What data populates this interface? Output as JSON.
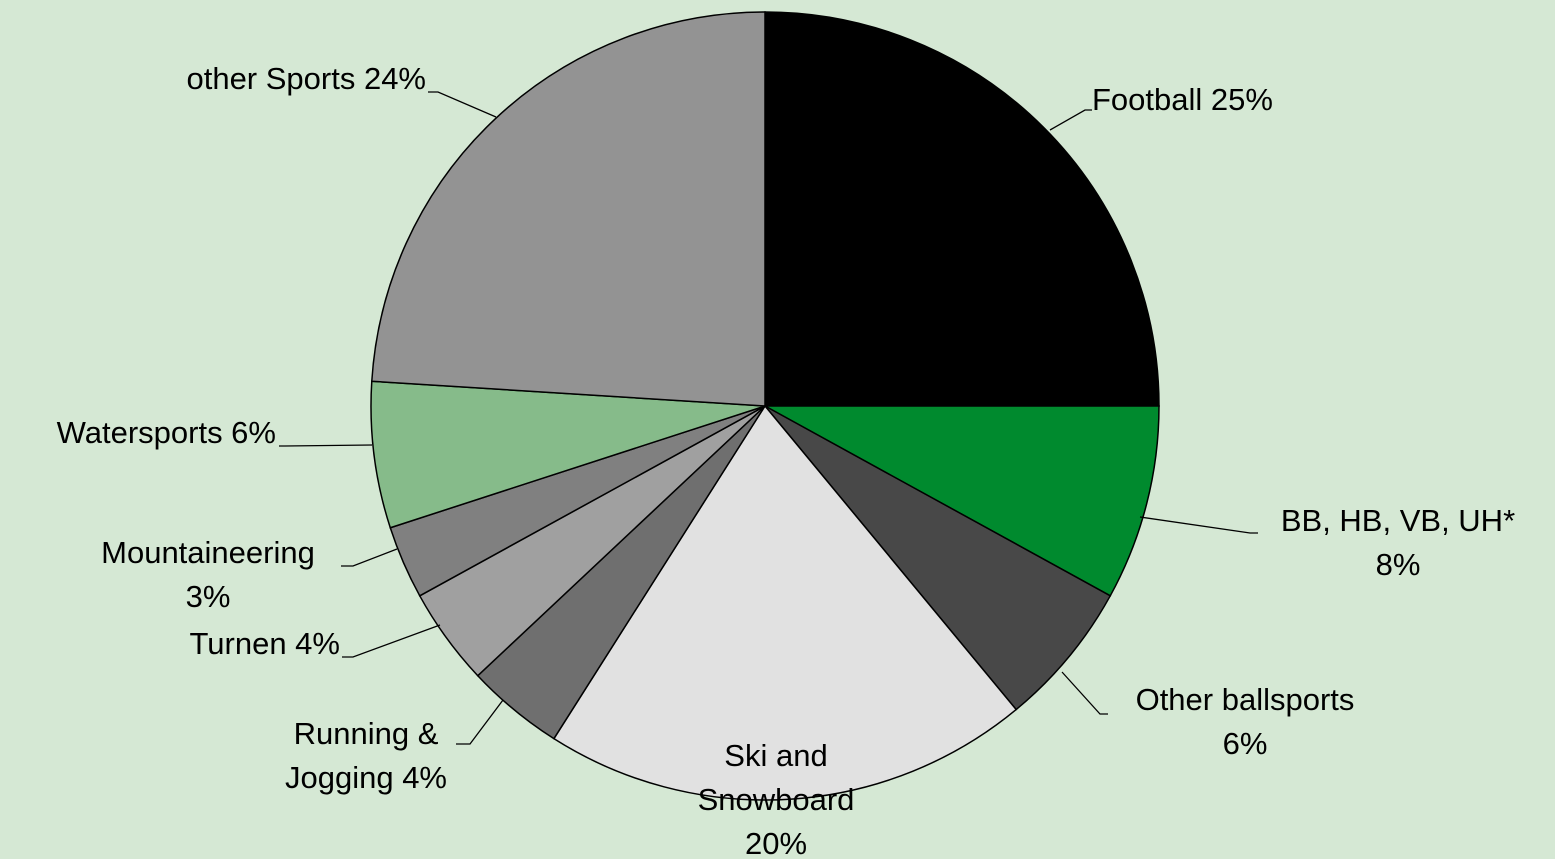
{
  "chart_data": {
    "type": "pie",
    "title": "",
    "slices": [
      {
        "name": "Football",
        "value": 25,
        "label_lines": [
          "Football 25%"
        ],
        "color": "#000000"
      },
      {
        "name": "BB, HB, VB, UH*",
        "value": 8,
        "label_lines": [
          "BB, HB, VB, UH*",
          "8%"
        ],
        "color": "#008a2e"
      },
      {
        "name": "Other ballsports",
        "value": 6,
        "label_lines": [
          "Other ballsports",
          "6%"
        ],
        "color": "#484848"
      },
      {
        "name": "Ski and Snowboard",
        "value": 20,
        "label_lines": [
          "Ski and",
          "Snowboard",
          "20%"
        ],
        "color": "#e1e1e1"
      },
      {
        "name": "Running & Jogging",
        "value": 4,
        "label_lines": [
          "Running &",
          "Jogging 4%"
        ],
        "color": "#6f6f6f"
      },
      {
        "name": "Turnen",
        "value": 4,
        "label_lines": [
          "Turnen 4%"
        ],
        "color": "#a0a0a0"
      },
      {
        "name": "Mountaineering",
        "value": 3,
        "label_lines": [
          "Mountaineering",
          "3%"
        ],
        "color": "#808080"
      },
      {
        "name": "Watersports",
        "value": 6,
        "label_lines": [
          "Watersports 6%"
        ],
        "color": "#86bb8a"
      },
      {
        "name": "other Sports",
        "value": 24,
        "label_lines": [
          "other Sports 24%"
        ],
        "color": "#939393"
      }
    ],
    "start": "12 o'clock",
    "direction": "clockwise",
    "legend": "none",
    "data_labels": "outside with leader lines"
  }
}
